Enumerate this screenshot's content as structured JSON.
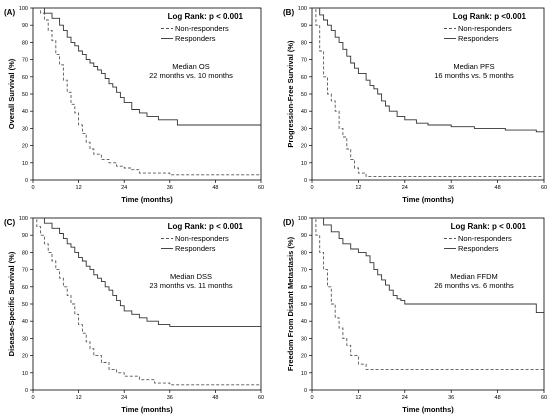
{
  "chart_data": [
    {
      "type": "line",
      "panel_label": "(A)",
      "logrank": "Log Rank: p < 0.001",
      "median_lines": [
        "Median OS",
        "22 months vs. 10 months"
      ],
      "xlabel": "Time (months)",
      "ylabel": "Overall Survival (%)",
      "xlim": [
        0,
        60
      ],
      "ylim": [
        0,
        100
      ],
      "x_ticks": [
        0,
        12,
        24,
        36,
        48,
        60
      ],
      "y_ticks": [
        0,
        10,
        20,
        30,
        40,
        50,
        60,
        70,
        80,
        90,
        100
      ],
      "x_tick_labels": [
        "0",
        "12",
        "24",
        "36",
        "48",
        "60"
      ],
      "y_tick_labels": [
        "0",
        "10",
        "20",
        "30",
        "40",
        "50",
        "60",
        "70",
        "80",
        "90",
        "100"
      ],
      "series": [
        {
          "name": "Non-responders",
          "style": "dashed",
          "color": "#555555",
          "x": [
            0,
            2,
            3,
            4,
            5,
            6,
            7,
            8,
            9,
            10,
            11,
            12,
            13,
            14,
            15,
            16,
            18,
            20,
            22,
            24,
            26,
            28,
            36,
            60
          ],
          "y": [
            100,
            97,
            93,
            87,
            81,
            73,
            67,
            58,
            51,
            44,
            39,
            32,
            27,
            22,
            18,
            15,
            12,
            10,
            8,
            7,
            6,
            4,
            3,
            3
          ]
        },
        {
          "name": "Responders",
          "style": "solid",
          "color": "#333333",
          "x": [
            0,
            3,
            5,
            7,
            8,
            9,
            10,
            11,
            12,
            13,
            14,
            15,
            16,
            17,
            18,
            19,
            20,
            21,
            22,
            23,
            24,
            26,
            28,
            30,
            33,
            38,
            60
          ],
          "y": [
            100,
            97,
            94,
            90,
            87,
            83,
            80,
            78,
            75,
            73,
            70,
            68,
            66,
            64,
            62,
            59,
            56,
            54,
            51,
            48,
            45,
            41,
            39,
            37,
            35,
            32,
            32
          ]
        }
      ]
    },
    {
      "type": "line",
      "panel_label": "(B)",
      "logrank": "Log Rank: p <0.001",
      "median_lines": [
        "Median PFS",
        "16 months vs. 5 months"
      ],
      "xlabel": "Time (months)",
      "ylabel": "Progression-Free Survival (%)",
      "xlim": [
        0,
        60
      ],
      "ylim": [
        0,
        100
      ],
      "x_ticks": [
        0,
        12,
        24,
        36,
        48,
        60
      ],
      "y_ticks": [
        0,
        10,
        20,
        30,
        40,
        50,
        60,
        70,
        80,
        90,
        100
      ],
      "x_tick_labels": [
        "0",
        "12",
        "24",
        "36",
        "48",
        "60"
      ],
      "y_tick_labels": [
        "0",
        "10",
        "20",
        "30",
        "40",
        "50",
        "60",
        "70",
        "80",
        "90",
        "100"
      ],
      "series": [
        {
          "name": "Non-responders",
          "style": "dashed",
          "color": "#555555",
          "x": [
            0,
            1,
            2,
            3,
            4,
            5,
            6,
            7,
            8,
            9,
            10,
            11,
            12,
            14,
            16,
            60
          ],
          "y": [
            100,
            90,
            75,
            60,
            50,
            46,
            40,
            30,
            25,
            18,
            12,
            7,
            4,
            2,
            2,
            2
          ]
        },
        {
          "name": "Responders",
          "style": "solid",
          "color": "#333333",
          "x": [
            0,
            2,
            3,
            4,
            5,
            6,
            7,
            8,
            9,
            10,
            11,
            12,
            14,
            15,
            16,
            17,
            18,
            19,
            20,
            22,
            24,
            27,
            30,
            36,
            42,
            50,
            58,
            60
          ],
          "y": [
            100,
            96,
            93,
            90,
            87,
            83,
            80,
            76,
            72,
            68,
            65,
            62,
            58,
            55,
            53,
            50,
            46,
            43,
            40,
            37,
            35,
            33,
            32,
            31,
            30,
            29,
            28,
            28
          ]
        }
      ]
    },
    {
      "type": "line",
      "panel_label": "(C)",
      "logrank": "Log Rank: p < 0.001",
      "median_lines": [
        "Median DSS",
        "23 months vs. 11 months"
      ],
      "xlabel": "Time (months)",
      "ylabel": "Disease-Specific Survival (%)",
      "xlim": [
        0,
        60
      ],
      "ylim": [
        0,
        100
      ],
      "x_ticks": [
        0,
        12,
        24,
        36,
        48,
        60
      ],
      "y_ticks": [
        0,
        10,
        20,
        30,
        40,
        50,
        60,
        70,
        80,
        90,
        100
      ],
      "x_tick_labels": [
        "0",
        "12",
        "24",
        "36",
        "48",
        "60"
      ],
      "y_tick_labels": [
        "0",
        "10",
        "20",
        "30",
        "40",
        "50",
        "60",
        "70",
        "80",
        "90",
        "100"
      ],
      "series": [
        {
          "name": "Non-responders",
          "style": "dashed",
          "color": "#555555",
          "x": [
            0,
            1,
            2,
            3,
            4,
            5,
            6,
            7,
            8,
            9,
            10,
            11,
            12,
            13,
            14,
            15,
            16,
            18,
            20,
            22,
            24,
            28,
            32,
            36,
            60
          ],
          "y": [
            100,
            95,
            90,
            85,
            80,
            75,
            70,
            65,
            60,
            55,
            50,
            44,
            38,
            33,
            28,
            24,
            20,
            16,
            12,
            10,
            8,
            6,
            4,
            3,
            3
          ]
        },
        {
          "name": "Responders",
          "style": "solid",
          "color": "#333333",
          "x": [
            0,
            3,
            5,
            7,
            8,
            9,
            10,
            11,
            12,
            13,
            14,
            15,
            16,
            17,
            18,
            19,
            20,
            21,
            22,
            23,
            24,
            26,
            28,
            30,
            33,
            36,
            60
          ],
          "y": [
            100,
            97,
            94,
            91,
            88,
            85,
            83,
            80,
            77,
            75,
            72,
            70,
            67,
            65,
            63,
            60,
            58,
            55,
            52,
            49,
            46,
            44,
            42,
            40,
            38,
            37,
            37
          ]
        }
      ]
    },
    {
      "type": "line",
      "panel_label": "(D)",
      "logrank": "Log Rank: p < 0.001",
      "median_lines": [
        "Median FFDM",
        "26 months vs. 6 months"
      ],
      "xlabel": "Time (months)",
      "ylabel": "Freedom From Distant Metastasis (%)",
      "xlim": [
        0,
        60
      ],
      "ylim": [
        0,
        100
      ],
      "x_ticks": [
        0,
        12,
        24,
        36,
        48,
        60
      ],
      "y_ticks": [
        0,
        10,
        20,
        30,
        40,
        50,
        60,
        70,
        80,
        90,
        100
      ],
      "x_tick_labels": [
        "0",
        "12",
        "24",
        "36",
        "48",
        "60"
      ],
      "y_tick_labels": [
        "0",
        "10",
        "20",
        "30",
        "40",
        "50",
        "60",
        "70",
        "80",
        "90",
        "100"
      ],
      "series": [
        {
          "name": "Non-responders",
          "style": "dashed",
          "color": "#555555",
          "x": [
            0,
            1,
            2,
            3,
            4,
            5,
            6,
            7,
            8,
            9,
            10,
            12,
            14,
            60
          ],
          "y": [
            100,
            90,
            80,
            70,
            60,
            50,
            42,
            36,
            30,
            26,
            20,
            15,
            12,
            12
          ]
        },
        {
          "name": "Responders",
          "style": "solid",
          "color": "#333333",
          "x": [
            0,
            3,
            5,
            7,
            8,
            10,
            12,
            14,
            15,
            16,
            17,
            18,
            19,
            20,
            21,
            22,
            23,
            24,
            26,
            30,
            36,
            40,
            46,
            56,
            58,
            60
          ],
          "y": [
            100,
            96,
            92,
            88,
            85,
            82,
            80,
            78,
            74,
            70,
            67,
            64,
            61,
            58,
            55,
            53,
            52,
            50,
            50,
            50,
            50,
            50,
            50,
            50,
            45,
            45
          ]
        }
      ]
    }
  ]
}
